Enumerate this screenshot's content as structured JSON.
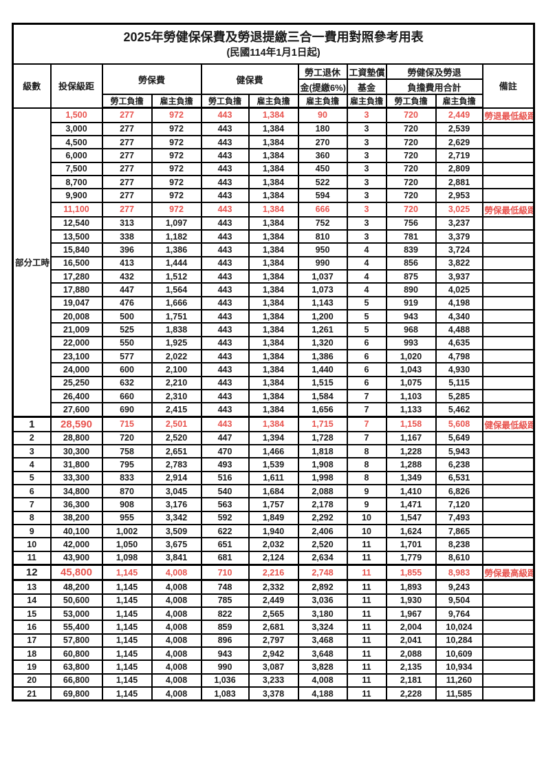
{
  "title": "2025年勞健保保費及勞退提繳三合一費用對照參考用表",
  "subtitle": "(民國114年1月1日起)",
  "colors": {
    "employee_column_bg": "#f8cbad",
    "employer_column_bg": "#e1e0f1",
    "highlight_text": "#e8534e",
    "border": "#000000"
  },
  "header": {
    "level": "級數",
    "bracket": "投保級距",
    "labor_ins": "勞保費",
    "health_ins": "健保費",
    "pension_line1": "勞工退休",
    "pension_line2": "金(提繳6%)",
    "wage_fund_line1": "工資墊償",
    "wage_fund_line2": "基金",
    "total_line1": "勞健保及勞退",
    "total_line2": "負擔費用合計",
    "remark": "備註",
    "employee": "勞工負擔",
    "employer": "雇主負擔"
  },
  "part_time_label": "部分工時",
  "part_time_span": 23,
  "rows": [
    {
      "level": "部分工時",
      "bracket": "1,500",
      "li_emp": "277",
      "li_er": "972",
      "hi_emp": "443",
      "hi_er": "1,384",
      "pension": "90",
      "wage": "3",
      "tot_emp": "720",
      "tot_er": "2,449",
      "remark": "勞退最低級距",
      "hl": true
    },
    {
      "bracket": "3,000",
      "li_emp": "277",
      "li_er": "972",
      "hi_emp": "443",
      "hi_er": "1,384",
      "pension": "180",
      "wage": "3",
      "tot_emp": "720",
      "tot_er": "2,539"
    },
    {
      "bracket": "4,500",
      "li_emp": "277",
      "li_er": "972",
      "hi_emp": "443",
      "hi_er": "1,384",
      "pension": "270",
      "wage": "3",
      "tot_emp": "720",
      "tot_er": "2,629"
    },
    {
      "bracket": "6,000",
      "li_emp": "277",
      "li_er": "972",
      "hi_emp": "443",
      "hi_er": "1,384",
      "pension": "360",
      "wage": "3",
      "tot_emp": "720",
      "tot_er": "2,719"
    },
    {
      "bracket": "7,500",
      "li_emp": "277",
      "li_er": "972",
      "hi_emp": "443",
      "hi_er": "1,384",
      "pension": "450",
      "wage": "3",
      "tot_emp": "720",
      "tot_er": "2,809"
    },
    {
      "bracket": "8,700",
      "li_emp": "277",
      "li_er": "972",
      "hi_emp": "443",
      "hi_er": "1,384",
      "pension": "522",
      "wage": "3",
      "tot_emp": "720",
      "tot_er": "2,881"
    },
    {
      "bracket": "9,900",
      "li_emp": "277",
      "li_er": "972",
      "hi_emp": "443",
      "hi_er": "1,384",
      "pension": "594",
      "wage": "3",
      "tot_emp": "720",
      "tot_er": "2,953"
    },
    {
      "bracket": "11,100",
      "li_emp": "277",
      "li_er": "972",
      "hi_emp": "443",
      "hi_er": "1,384",
      "pension": "666",
      "wage": "3",
      "tot_emp": "720",
      "tot_er": "3,025",
      "remark": "勞保最低級距",
      "hl": true
    },
    {
      "bracket": "12,540",
      "li_emp": "313",
      "li_er": "1,097",
      "hi_emp": "443",
      "hi_er": "1,384",
      "pension": "752",
      "wage": "3",
      "tot_emp": "756",
      "tot_er": "3,237"
    },
    {
      "bracket": "13,500",
      "li_emp": "338",
      "li_er": "1,182",
      "hi_emp": "443",
      "hi_er": "1,384",
      "pension": "810",
      "wage": "3",
      "tot_emp": "781",
      "tot_er": "3,379"
    },
    {
      "bracket": "15,840",
      "li_emp": "396",
      "li_er": "1,386",
      "hi_emp": "443",
      "hi_er": "1,384",
      "pension": "950",
      "wage": "4",
      "tot_emp": "839",
      "tot_er": "3,724"
    },
    {
      "bracket": "16,500",
      "li_emp": "413",
      "li_er": "1,444",
      "hi_emp": "443",
      "hi_er": "1,384",
      "pension": "990",
      "wage": "4",
      "tot_emp": "856",
      "tot_er": "3,822"
    },
    {
      "bracket": "17,280",
      "li_emp": "432",
      "li_er": "1,512",
      "hi_emp": "443",
      "hi_er": "1,384",
      "pension": "1,037",
      "wage": "4",
      "tot_emp": "875",
      "tot_er": "3,937"
    },
    {
      "bracket": "17,880",
      "li_emp": "447",
      "li_er": "1,564",
      "hi_emp": "443",
      "hi_er": "1,384",
      "pension": "1,073",
      "wage": "4",
      "tot_emp": "890",
      "tot_er": "4,025"
    },
    {
      "bracket": "19,047",
      "li_emp": "476",
      "li_er": "1,666",
      "hi_emp": "443",
      "hi_er": "1,384",
      "pension": "1,143",
      "wage": "5",
      "tot_emp": "919",
      "tot_er": "4,198"
    },
    {
      "bracket": "20,008",
      "li_emp": "500",
      "li_er": "1,751",
      "hi_emp": "443",
      "hi_er": "1,384",
      "pension": "1,200",
      "wage": "5",
      "tot_emp": "943",
      "tot_er": "4,340"
    },
    {
      "bracket": "21,009",
      "li_emp": "525",
      "li_er": "1,838",
      "hi_emp": "443",
      "hi_er": "1,384",
      "pension": "1,261",
      "wage": "5",
      "tot_emp": "968",
      "tot_er": "4,488"
    },
    {
      "bracket": "22,000",
      "li_emp": "550",
      "li_er": "1,925",
      "hi_emp": "443",
      "hi_er": "1,384",
      "pension": "1,320",
      "wage": "6",
      "tot_emp": "993",
      "tot_er": "4,635"
    },
    {
      "bracket": "23,100",
      "li_emp": "577",
      "li_er": "2,022",
      "hi_emp": "443",
      "hi_er": "1,384",
      "pension": "1,386",
      "wage": "6",
      "tot_emp": "1,020",
      "tot_er": "4,798"
    },
    {
      "bracket": "24,000",
      "li_emp": "600",
      "li_er": "2,100",
      "hi_emp": "443",
      "hi_er": "1,384",
      "pension": "1,440",
      "wage": "6",
      "tot_emp": "1,043",
      "tot_er": "4,930"
    },
    {
      "bracket": "25,250",
      "li_emp": "632",
      "li_er": "2,210",
      "hi_emp": "443",
      "hi_er": "1,384",
      "pension": "1,515",
      "wage": "6",
      "tot_emp": "1,075",
      "tot_er": "5,115"
    },
    {
      "bracket": "26,400",
      "li_emp": "660",
      "li_er": "2,310",
      "hi_emp": "443",
      "hi_er": "1,384",
      "pension": "1,584",
      "wage": "7",
      "tot_emp": "1,103",
      "tot_er": "5,285"
    },
    {
      "bracket": "27,600",
      "li_emp": "690",
      "li_er": "2,415",
      "hi_emp": "443",
      "hi_er": "1,384",
      "pension": "1,656",
      "wage": "7",
      "tot_emp": "1,133",
      "tot_er": "5,462"
    },
    {
      "level": "1",
      "bracket": "28,590",
      "li_emp": "715",
      "li_er": "2,501",
      "hi_emp": "443",
      "hi_er": "1,384",
      "pension": "1,715",
      "wage": "7",
      "tot_emp": "1,158",
      "tot_er": "5,608",
      "remark": "健保最低級距",
      "hl": true,
      "big": true,
      "thick": true
    },
    {
      "level": "2",
      "bracket": "28,800",
      "li_emp": "720",
      "li_er": "2,520",
      "hi_emp": "447",
      "hi_er": "1,394",
      "pension": "1,728",
      "wage": "7",
      "tot_emp": "1,167",
      "tot_er": "5,649"
    },
    {
      "level": "3",
      "bracket": "30,300",
      "li_emp": "758",
      "li_er": "2,651",
      "hi_emp": "470",
      "hi_er": "1,466",
      "pension": "1,818",
      "wage": "8",
      "tot_emp": "1,228",
      "tot_er": "5,943"
    },
    {
      "level": "4",
      "bracket": "31,800",
      "li_emp": "795",
      "li_er": "2,783",
      "hi_emp": "493",
      "hi_er": "1,539",
      "pension": "1,908",
      "wage": "8",
      "tot_emp": "1,288",
      "tot_er": "6,238"
    },
    {
      "level": "5",
      "bracket": "33,300",
      "li_emp": "833",
      "li_er": "2,914",
      "hi_emp": "516",
      "hi_er": "1,611",
      "pension": "1,998",
      "wage": "8",
      "tot_emp": "1,349",
      "tot_er": "6,531"
    },
    {
      "level": "6",
      "bracket": "34,800",
      "li_emp": "870",
      "li_er": "3,045",
      "hi_emp": "540",
      "hi_er": "1,684",
      "pension": "2,088",
      "wage": "9",
      "tot_emp": "1,410",
      "tot_er": "6,826"
    },
    {
      "level": "7",
      "bracket": "36,300",
      "li_emp": "908",
      "li_er": "3,176",
      "hi_emp": "563",
      "hi_er": "1,757",
      "pension": "2,178",
      "wage": "9",
      "tot_emp": "1,471",
      "tot_er": "7,120"
    },
    {
      "level": "8",
      "bracket": "38,200",
      "li_emp": "955",
      "li_er": "3,342",
      "hi_emp": "592",
      "hi_er": "1,849",
      "pension": "2,292",
      "wage": "10",
      "tot_emp": "1,547",
      "tot_er": "7,493"
    },
    {
      "level": "9",
      "bracket": "40,100",
      "li_emp": "1,002",
      "li_er": "3,509",
      "hi_emp": "622",
      "hi_er": "1,940",
      "pension": "2,406",
      "wage": "10",
      "tot_emp": "1,624",
      "tot_er": "7,865"
    },
    {
      "level": "10",
      "bracket": "42,000",
      "li_emp": "1,050",
      "li_er": "3,675",
      "hi_emp": "651",
      "hi_er": "2,032",
      "pension": "2,520",
      "wage": "11",
      "tot_emp": "1,701",
      "tot_er": "8,238"
    },
    {
      "level": "11",
      "bracket": "43,900",
      "li_emp": "1,098",
      "li_er": "3,841",
      "hi_emp": "681",
      "hi_er": "2,124",
      "pension": "2,634",
      "wage": "11",
      "tot_emp": "1,779",
      "tot_er": "8,610"
    },
    {
      "level": "12",
      "bracket": "45,800",
      "li_emp": "1,145",
      "li_er": "4,008",
      "hi_emp": "710",
      "hi_er": "2,216",
      "pension": "2,748",
      "wage": "11",
      "tot_emp": "1,855",
      "tot_er": "8,983",
      "remark": "勞保最高級距",
      "hl": true,
      "big": true,
      "thick": true
    },
    {
      "level": "13",
      "bracket": "48,200",
      "li_emp": "1,145",
      "li_er": "4,008",
      "hi_emp": "748",
      "hi_er": "2,332",
      "pension": "2,892",
      "wage": "11",
      "tot_emp": "1,893",
      "tot_er": "9,243",
      "thick": true
    },
    {
      "level": "14",
      "bracket": "50,600",
      "li_emp": "1,145",
      "li_er": "4,008",
      "hi_emp": "785",
      "hi_er": "2,449",
      "pension": "3,036",
      "wage": "11",
      "tot_emp": "1,930",
      "tot_er": "9,504"
    },
    {
      "level": "15",
      "bracket": "53,000",
      "li_emp": "1,145",
      "li_er": "4,008",
      "hi_emp": "822",
      "hi_er": "2,565",
      "pension": "3,180",
      "wage": "11",
      "tot_emp": "1,967",
      "tot_er": "9,764"
    },
    {
      "level": "16",
      "bracket": "55,400",
      "li_emp": "1,145",
      "li_er": "4,008",
      "hi_emp": "859",
      "hi_er": "2,681",
      "pension": "3,324",
      "wage": "11",
      "tot_emp": "2,004",
      "tot_er": "10,024"
    },
    {
      "level": "17",
      "bracket": "57,800",
      "li_emp": "1,145",
      "li_er": "4,008",
      "hi_emp": "896",
      "hi_er": "2,797",
      "pension": "3,468",
      "wage": "11",
      "tot_emp": "2,041",
      "tot_er": "10,284"
    },
    {
      "level": "18",
      "bracket": "60,800",
      "li_emp": "1,145",
      "li_er": "4,008",
      "hi_emp": "943",
      "hi_er": "2,942",
      "pension": "3,648",
      "wage": "11",
      "tot_emp": "2,088",
      "tot_er": "10,609"
    },
    {
      "level": "19",
      "bracket": "63,800",
      "li_emp": "1,145",
      "li_er": "4,008",
      "hi_emp": "990",
      "hi_er": "3,087",
      "pension": "3,828",
      "wage": "11",
      "tot_emp": "2,135",
      "tot_er": "10,934"
    },
    {
      "level": "20",
      "bracket": "66,800",
      "li_emp": "1,145",
      "li_er": "4,008",
      "hi_emp": "1,036",
      "hi_er": "3,233",
      "pension": "4,008",
      "wage": "11",
      "tot_emp": "2,181",
      "tot_er": "11,260"
    },
    {
      "level": "21",
      "bracket": "69,800",
      "li_emp": "1,145",
      "li_er": "4,008",
      "hi_emp": "1,083",
      "hi_er": "3,378",
      "pension": "4,188",
      "wage": "11",
      "tot_emp": "2,228",
      "tot_er": "11,585"
    }
  ]
}
